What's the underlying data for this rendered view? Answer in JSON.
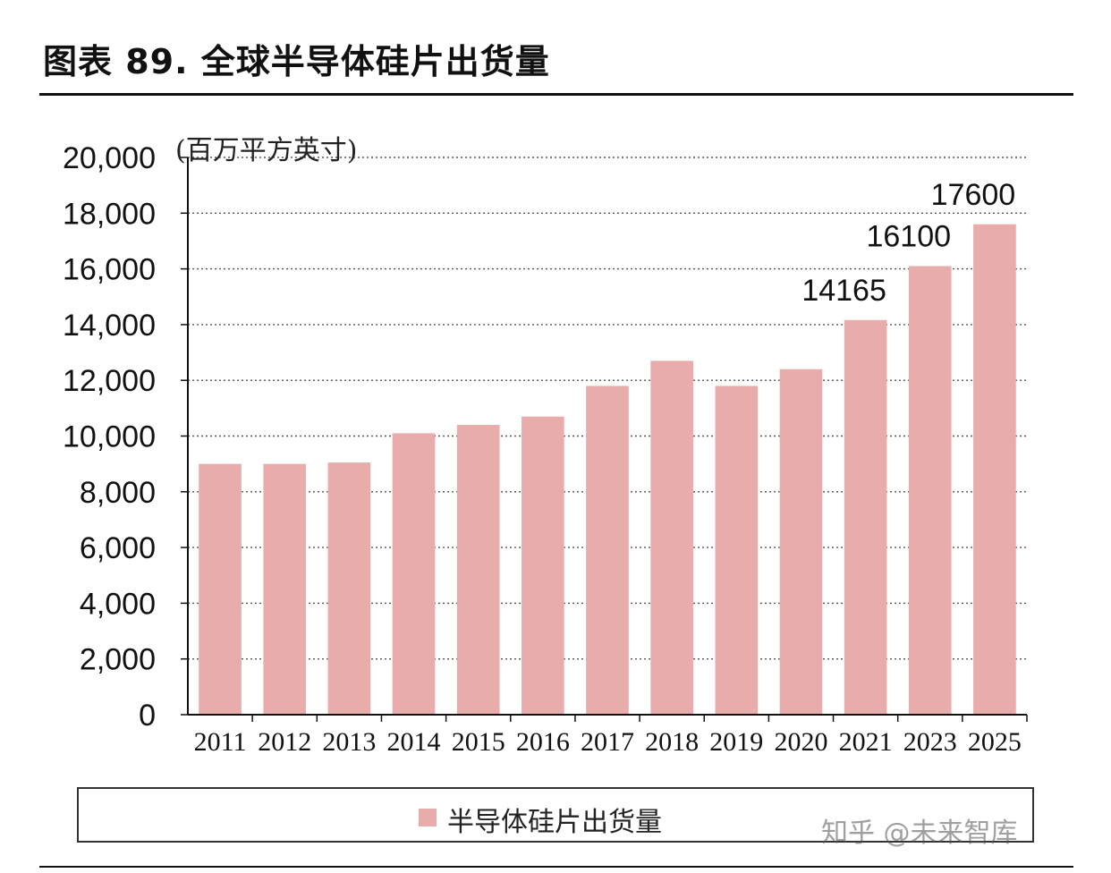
{
  "header": {
    "title": "图表 89. 全球半导体硅片出货量"
  },
  "watermark": "知乎 @未来智库",
  "colors": {
    "bar": "#e8adab",
    "axis": "#111111",
    "grid": "#555555"
  },
  "chart_data": {
    "type": "bar",
    "title": "图表 89. 全球半导体硅片出货量",
    "ylabel": "(百万平方英寸)",
    "xlabel": "",
    "categories": [
      "2011",
      "2012",
      "2013",
      "2014",
      "2015",
      "2016",
      "2017",
      "2018",
      "2019",
      "2020",
      "2021",
      "2023",
      "2025"
    ],
    "series": [
      {
        "name": "半导体硅片出货量",
        "values": [
          9000,
          9000,
          9050,
          10100,
          10400,
          10700,
          11800,
          12700,
          11800,
          12400,
          14165,
          16100,
          17600
        ]
      }
    ],
    "data_labels": [
      null,
      null,
      null,
      null,
      null,
      null,
      null,
      null,
      null,
      null,
      "14165",
      "16100",
      "17600"
    ],
    "yticks": [
      "0",
      "2,000",
      "4,000",
      "6,000",
      "8,000",
      "10,000",
      "12,000",
      "14,000",
      "16,000",
      "18,000",
      "20,000"
    ],
    "ylim": [
      0,
      20000
    ],
    "grid": true,
    "grid_style": "dotted",
    "legend": {
      "position": "bottom",
      "entries": [
        "半导体硅片出货量"
      ]
    }
  }
}
